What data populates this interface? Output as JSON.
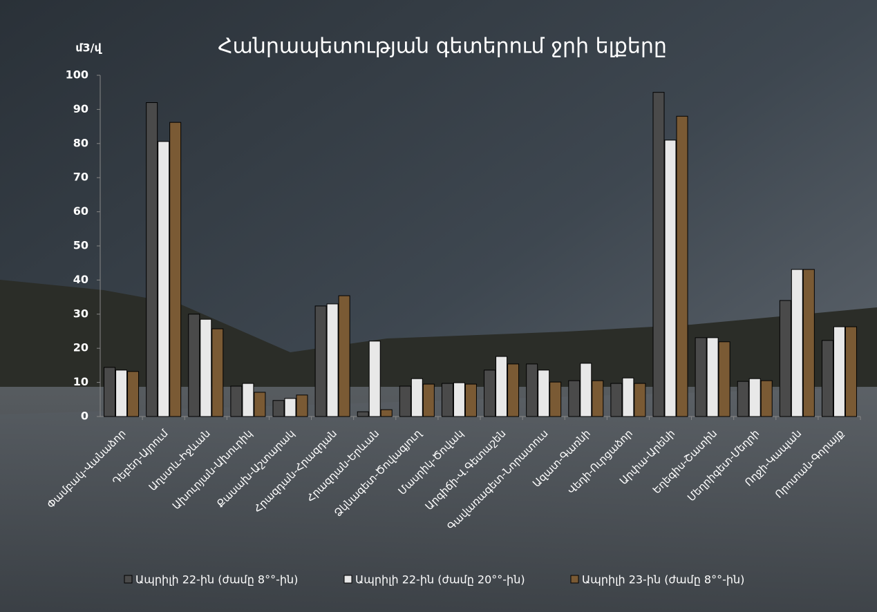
{
  "chart_data": {
    "type": "bar",
    "title": "Հանրապետության գետերում ջրի ելքերը",
    "y_label": "մ3/վ",
    "categories": [
      "Փամբակ-Վանաձոր",
      "Դեբեդ-Այրում",
      "Աղստև-Իջևան",
      "Ախուրյան-Ախուրիկ",
      "Քասախ-Աշտարակ",
      "Հրազդան-Հրազդան",
      "Հրազդան-Երևան",
      "Ձկնագետ-Ծովագյուղ",
      "Մասրիկ-Ծովակ",
      "Արգիճի-Վ.Գետաշեն",
      "Գավառագետ-Նորատուս",
      "Ազատ-Գառնի",
      "Վեդի-Ուրցաձոր",
      "Արփա-Արենի",
      "Եղեգիս-Շատին",
      "Մեղրիգետ-Մեղրի",
      "Ողջի-Կապան",
      "Որոտան-Գորայք"
    ],
    "series": [
      {
        "name": "Ապրիլի 22-ին (ժամը 8°°-ին)",
        "color": "#4a4a4a",
        "values": [
          14.4,
          92,
          30,
          8.9,
          4.7,
          32.4,
          1.4,
          8.9,
          9.7,
          13.6,
          15.4,
          10.5,
          9.7,
          95,
          23.1,
          10.3,
          34,
          22.3
        ]
      },
      {
        "name": "Ապրիլի 22-ին (ժամը 20°°-ին)",
        "color": "#e8e8e8",
        "values": [
          13.6,
          80.6,
          28.5,
          9.7,
          5.3,
          33,
          22.1,
          11.1,
          9.9,
          17.6,
          13.6,
          15.6,
          11.3,
          81,
          23.1,
          11.1,
          43.1,
          26.3
        ]
      },
      {
        "name": "Ապրիլի 23-ին (ժամը 8°°-ին)",
        "color": "#7a5a34",
        "values": [
          13.2,
          86.2,
          25.7,
          7.1,
          6.3,
          35.4,
          2,
          9.5,
          9.5,
          15.4,
          10.1,
          10.5,
          9.7,
          88,
          21.9,
          10.5,
          43.1,
          26.3
        ]
      }
    ],
    "ylim": [
      0,
      100
    ],
    "yticks": [
      0,
      10,
      20,
      30,
      40,
      50,
      60,
      70,
      80,
      90,
      100
    ]
  }
}
